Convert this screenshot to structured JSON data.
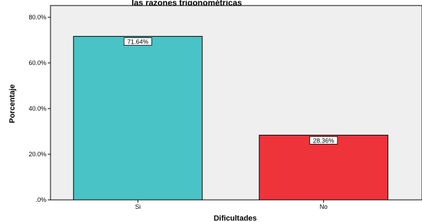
{
  "chart_data": {
    "type": "bar",
    "title": "las razones trigonométricas",
    "xlabel": "Dificultades",
    "ylabel": "Porcentaje",
    "categories": [
      "Si",
      "No"
    ],
    "values": [
      71.64,
      28.36
    ],
    "data_labels": [
      "71.64%",
      "28.36%"
    ],
    "ylim": [
      0,
      80
    ],
    "yticks": [
      0,
      20,
      40,
      60,
      80
    ],
    "ytick_labels": [
      ".0%",
      "20.0%",
      "40.0%",
      "60.0%",
      "80.0%"
    ],
    "grid": false,
    "legend": "none",
    "colors": [
      "#49c3c5",
      "#ef333b"
    ],
    "plot_background": "#efefef"
  }
}
